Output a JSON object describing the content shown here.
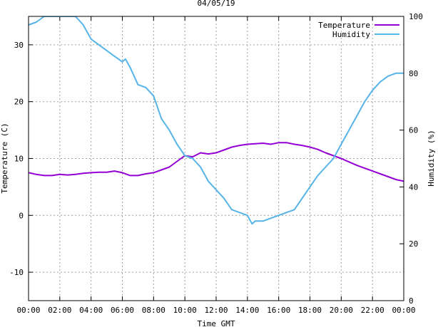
{
  "chart_data": {
    "type": "line",
    "title": "04/05/19",
    "xlabel": "Time GMT",
    "ylabel": "Temperature (C)",
    "y2label": "Humidity (%)",
    "x_ticks": [
      "00:00",
      "02:00",
      "04:00",
      "06:00",
      "08:00",
      "10:00",
      "12:00",
      "14:00",
      "16:00",
      "18:00",
      "20:00",
      "22:00",
      "00:00"
    ],
    "xlim": [
      0,
      24
    ],
    "ylim": [
      -15,
      35
    ],
    "y_ticks": [
      -10,
      0,
      10,
      20,
      30
    ],
    "y2lim": [
      0,
      100
    ],
    "y2_ticks": [
      0,
      20,
      40,
      60,
      80,
      100
    ],
    "grid": true,
    "legend_position": "top-right",
    "series": [
      {
        "name": "Temperature",
        "axis": "left",
        "color": "#9400d3",
        "x": [
          0,
          0.5,
          1,
          1.5,
          2,
          2.5,
          3,
          3.5,
          4,
          4.5,
          5,
          5.5,
          6,
          6.5,
          7,
          7.5,
          8,
          8.5,
          9,
          9.5,
          10,
          10.5,
          11,
          11.5,
          12,
          12.5,
          13,
          13.5,
          14,
          14.5,
          15,
          15.5,
          16,
          16.5,
          17,
          17.5,
          18,
          18.5,
          19,
          19.5,
          20,
          20.5,
          21,
          21.5,
          22,
          22.5,
          23,
          23.5,
          24
        ],
        "y": [
          7.5,
          7.2,
          7.0,
          7.0,
          7.2,
          7.1,
          7.2,
          7.4,
          7.5,
          7.6,
          7.6,
          7.8,
          7.5,
          7.0,
          7.0,
          7.3,
          7.5,
          8.0,
          8.5,
          9.5,
          10.5,
          10.3,
          11.0,
          10.8,
          11.0,
          11.5,
          12.0,
          12.3,
          12.5,
          12.6,
          12.7,
          12.5,
          12.8,
          12.8,
          12.5,
          12.3,
          12.0,
          11.6,
          11.0,
          10.5,
          10.0,
          9.4,
          8.8,
          8.3,
          7.8,
          7.3,
          6.8,
          6.3,
          6.0
        ]
      },
      {
        "name": "Humidity",
        "axis": "right",
        "color": "#56b4e9",
        "x": [
          0,
          0.5,
          1,
          1.5,
          2,
          2.5,
          3,
          3.5,
          4,
          4.5,
          5,
          5.5,
          6,
          6.2,
          6.5,
          7,
          7.5,
          8,
          8.5,
          9,
          9.5,
          10,
          10.5,
          11,
          11.5,
          12,
          12.5,
          13,
          13.5,
          14,
          14.3,
          14.5,
          15,
          15.5,
          16,
          16.5,
          17,
          17.5,
          18,
          18.5,
          19,
          19.5,
          20,
          20.5,
          21,
          21.5,
          22,
          22.5,
          23,
          23.5,
          24
        ],
        "y": [
          97,
          98,
          100,
          100,
          100,
          100,
          100,
          97,
          92,
          90,
          88,
          86,
          84,
          85,
          82,
          76,
          75,
          72,
          64,
          60,
          55,
          51,
          50,
          47,
          42,
          39,
          36,
          32,
          31,
          30,
          27,
          28,
          28,
          29,
          30,
          31,
          32,
          36,
          40,
          44,
          47,
          50,
          55,
          60,
          65,
          70,
          74,
          77,
          79,
          80,
          80
        ]
      }
    ]
  }
}
